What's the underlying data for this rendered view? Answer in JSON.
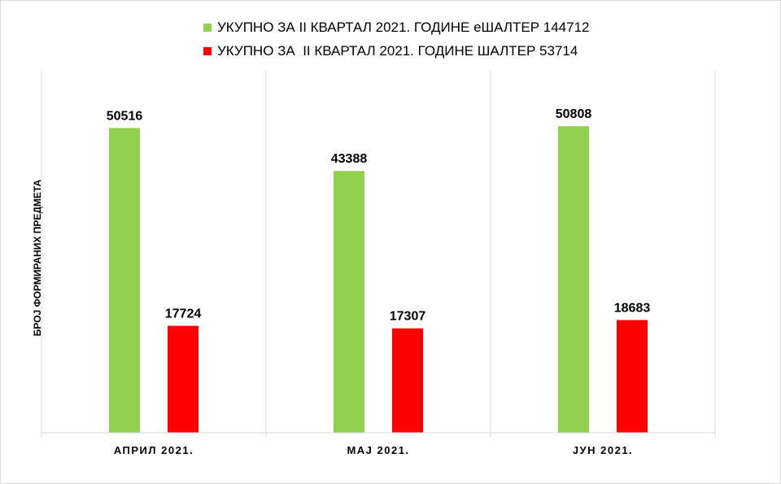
{
  "chart_data": {
    "type": "bar",
    "title": "",
    "xlabel": "",
    "ylabel": "БРОЈ ФОРМИРАНИХ ПРЕДМЕТА",
    "categories": [
      "АПРИЛ 2021.",
      "МАЈ 2021.",
      "ЈУН 2021."
    ],
    "series": [
      {
        "name": "УКУПНО ЗА II КВАРТАЛ 2021. ГОДИНЕ еШАЛТЕР 144712",
        "color": "#92d050",
        "values": [
          50516,
          43388,
          50808
        ]
      },
      {
        "name": "УКУПНО ЗА  II КВАРТАЛ 2021. ГОДИНЕ ШАЛТЕР 53714",
        "color": "#ff0000",
        "values": [
          17724,
          17307,
          18683
        ]
      }
    ],
    "ylim": [
      0,
      60000
    ],
    "grid": false,
    "legend_position": "top"
  }
}
